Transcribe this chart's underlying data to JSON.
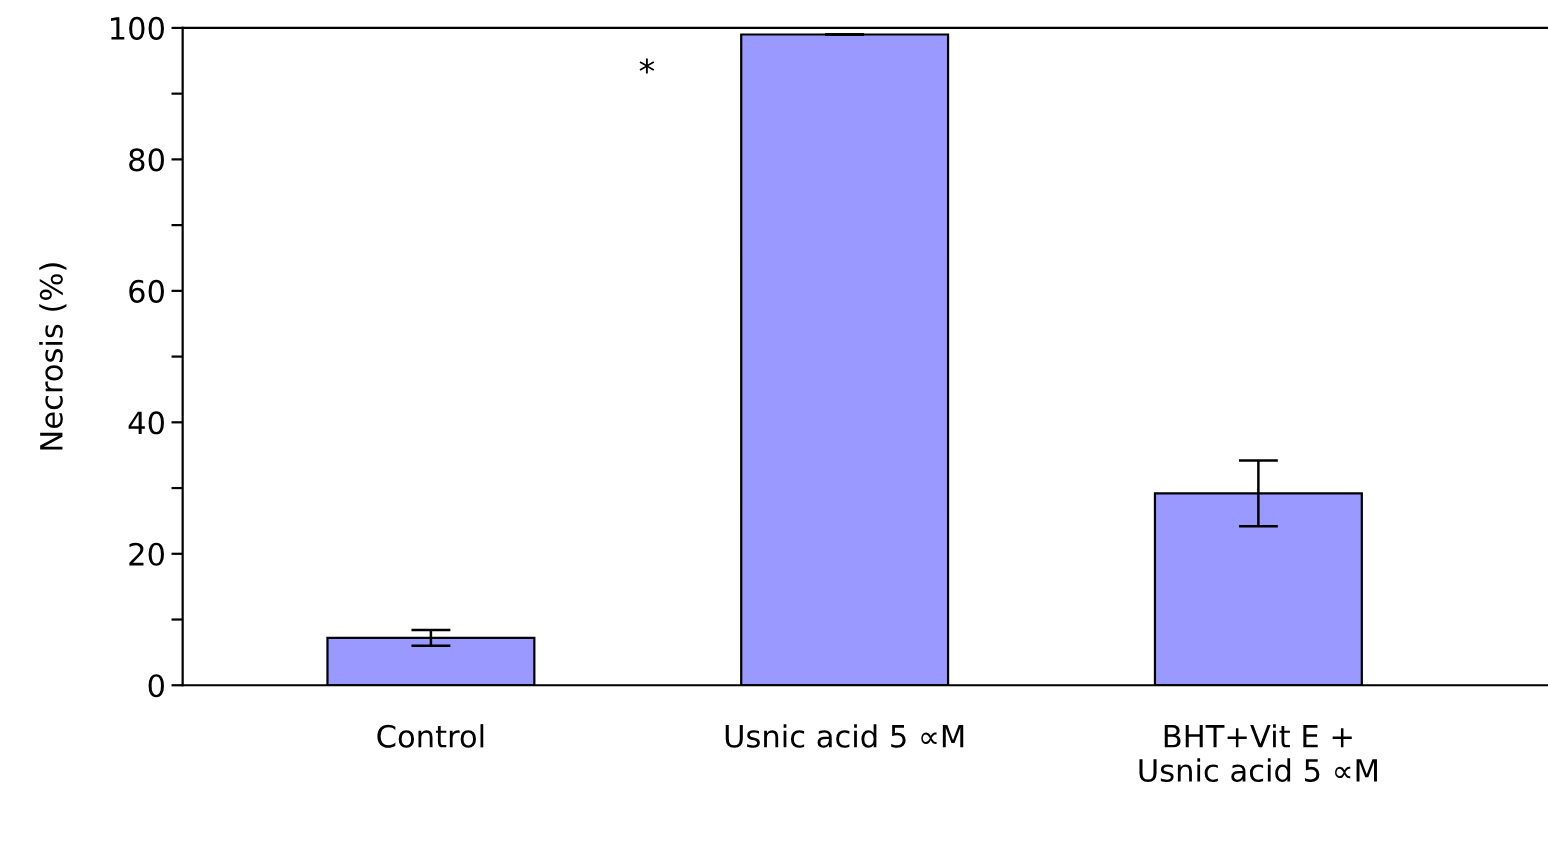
{
  "chart_data": {
    "type": "bar",
    "ylabel": "Necrosis (%)",
    "categories": [
      "Control",
      "Usnic acid 5 ∝M",
      "BHT+Vit E +\nUsnic acid 5 ∝M"
    ],
    "values": [
      7.2,
      99,
      29.2
    ],
    "errors": [
      1.2,
      null,
      5
    ],
    "color": "#9999ff",
    "ylim": [
      0,
      100
    ],
    "yticks": [
      0,
      {
        "value": 10,
        "label": null
      },
      20,
      {
        "value": 30,
        "label": null
      },
      40,
      {
        "value": 50,
        "label": null
      },
      60,
      {
        "value": 70,
        "label": null
      },
      80,
      {
        "value": 90,
        "label": null
      },
      100
    ],
    "annotations": [
      "*"
    ],
    "grid": false
  }
}
